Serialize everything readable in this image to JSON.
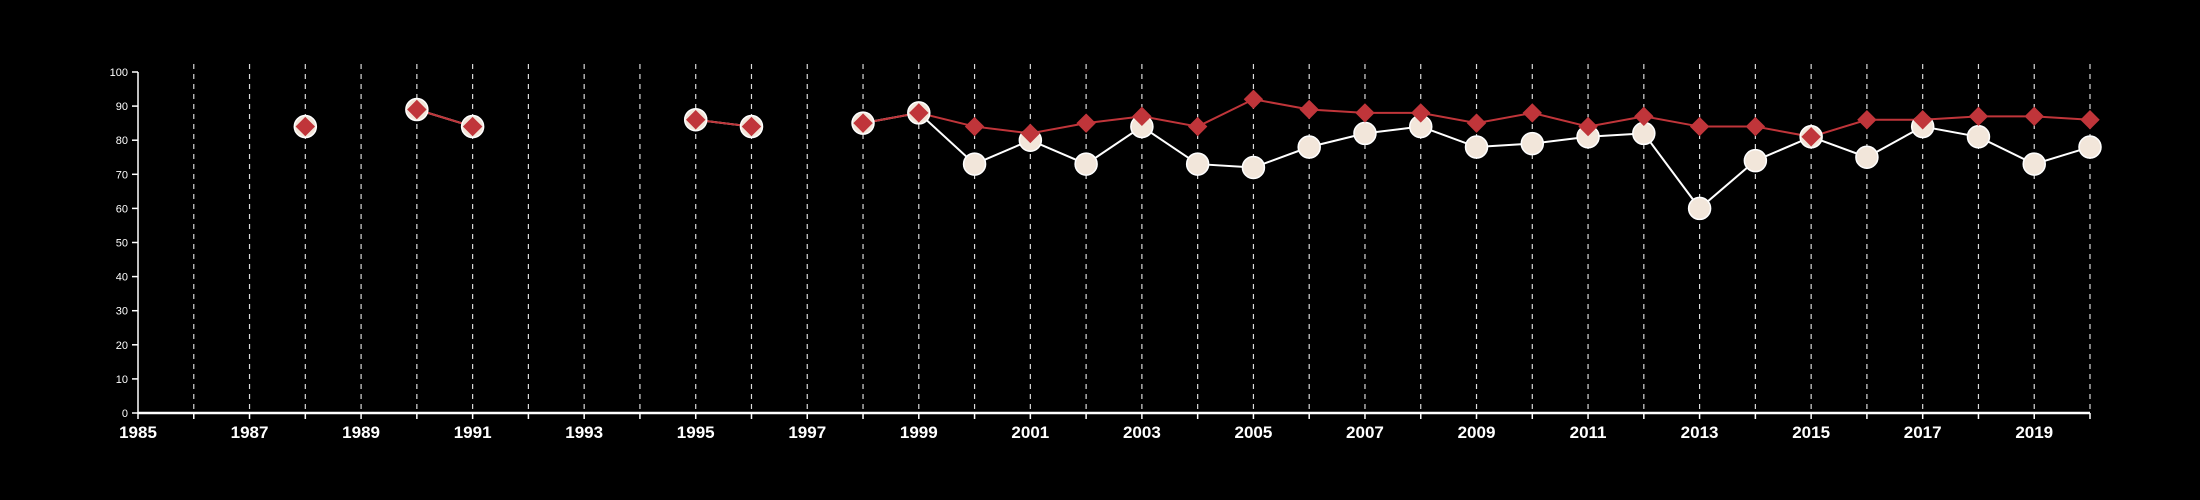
{
  "colors": {
    "background": "#000000",
    "axis": "#ffffff",
    "grid": "#d9d9d9",
    "series_a": "#ffffff",
    "series_a_marker": "#f2e6da",
    "series_b": "#c0353a"
  },
  "chart_data": {
    "type": "line",
    "title": "",
    "xlabel": "",
    "ylabel": "",
    "xlim": [
      1985,
      2020
    ],
    "ylim": [
      0,
      100
    ],
    "y_ticks": [
      0,
      10,
      20,
      30,
      40,
      50,
      60,
      70,
      80,
      90,
      100
    ],
    "x_ticks_labeled": [
      1985,
      1987,
      1989,
      1991,
      1993,
      1995,
      1997,
      1999,
      2001,
      2003,
      2005,
      2007,
      2009,
      2011,
      2013,
      2015,
      2017,
      2019
    ],
    "x_ticks_minor": [
      1986,
      1988,
      1990,
      1992,
      1994,
      1996,
      1998,
      2000,
      2002,
      2004,
      2006,
      2008,
      2010,
      2012,
      2014,
      2016,
      2018,
      2020
    ],
    "grid": "vertical dashed lines at each year",
    "legend": "none",
    "x": [
      1988,
      1990,
      1991,
      1995,
      1996,
      1998,
      1999,
      2000,
      2001,
      2002,
      2003,
      2004,
      2005,
      2006,
      2007,
      2008,
      2009,
      2010,
      2011,
      2012,
      2013,
      2014,
      2015,
      2016,
      2017,
      2018,
      2019,
      2020
    ],
    "series": [
      {
        "marker": "circle",
        "color": "#ffffff",
        "values": [
          84,
          89,
          84,
          86,
          84,
          85,
          88,
          73,
          80,
          73,
          84,
          73,
          72,
          78,
          82,
          84,
          78,
          79,
          81,
          82,
          60,
          74,
          81,
          75,
          84,
          81,
          73,
          78
        ]
      },
      {
        "marker": "diamond",
        "color": "#c0353a",
        "values": [
          84,
          89,
          84,
          86,
          84,
          85,
          88,
          84,
          82,
          85,
          87,
          84,
          92,
          89,
          88,
          88,
          85,
          88,
          84,
          87,
          84,
          84,
          81,
          86,
          86,
          87,
          87,
          86
        ]
      }
    ]
  }
}
